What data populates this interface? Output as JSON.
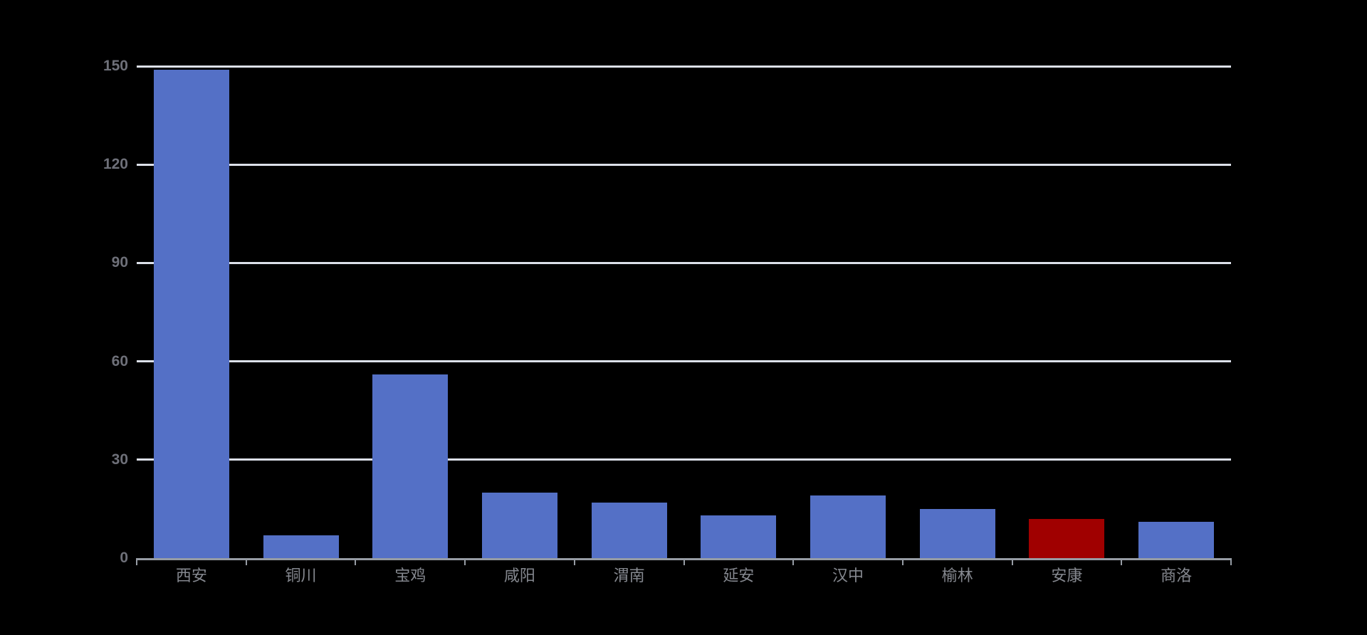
{
  "page": {
    "background_color": "#000000"
  },
  "chart_data": {
    "type": "bar",
    "title": "",
    "xlabel": "",
    "ylabel": "",
    "legend": "none",
    "grid": "horizontal-only",
    "categories": [
      "西安",
      "铜川",
      "宝鸡",
      "咸阳",
      "渭南",
      "延安",
      "汉中",
      "榆林",
      "安康",
      "商洛"
    ],
    "values": [
      149,
      7,
      56,
      20,
      17,
      13,
      19,
      15,
      12,
      11
    ],
    "bar_colors": [
      "#5470c6",
      "#5470c6",
      "#5470c6",
      "#5470c6",
      "#5470c6",
      "#5470c6",
      "#5470c6",
      "#5470c6",
      "#a00000",
      "#5470c6"
    ],
    "default_bar_color": "#5470c6",
    "highlight_color": "#a00000",
    "highlighted_category": "安康",
    "ylim": [
      0,
      150
    ],
    "y_ticks": [
      0,
      30,
      60,
      90,
      120,
      150
    ],
    "y_tick_labels": [
      "0",
      "30",
      "60",
      "90",
      "120",
      "150"
    ],
    "colors": {
      "gridline": "#dce0e9",
      "axis_line": "#969ca4",
      "y_tick_label": "#6e7079",
      "x_tick_label": "#85888f"
    }
  }
}
